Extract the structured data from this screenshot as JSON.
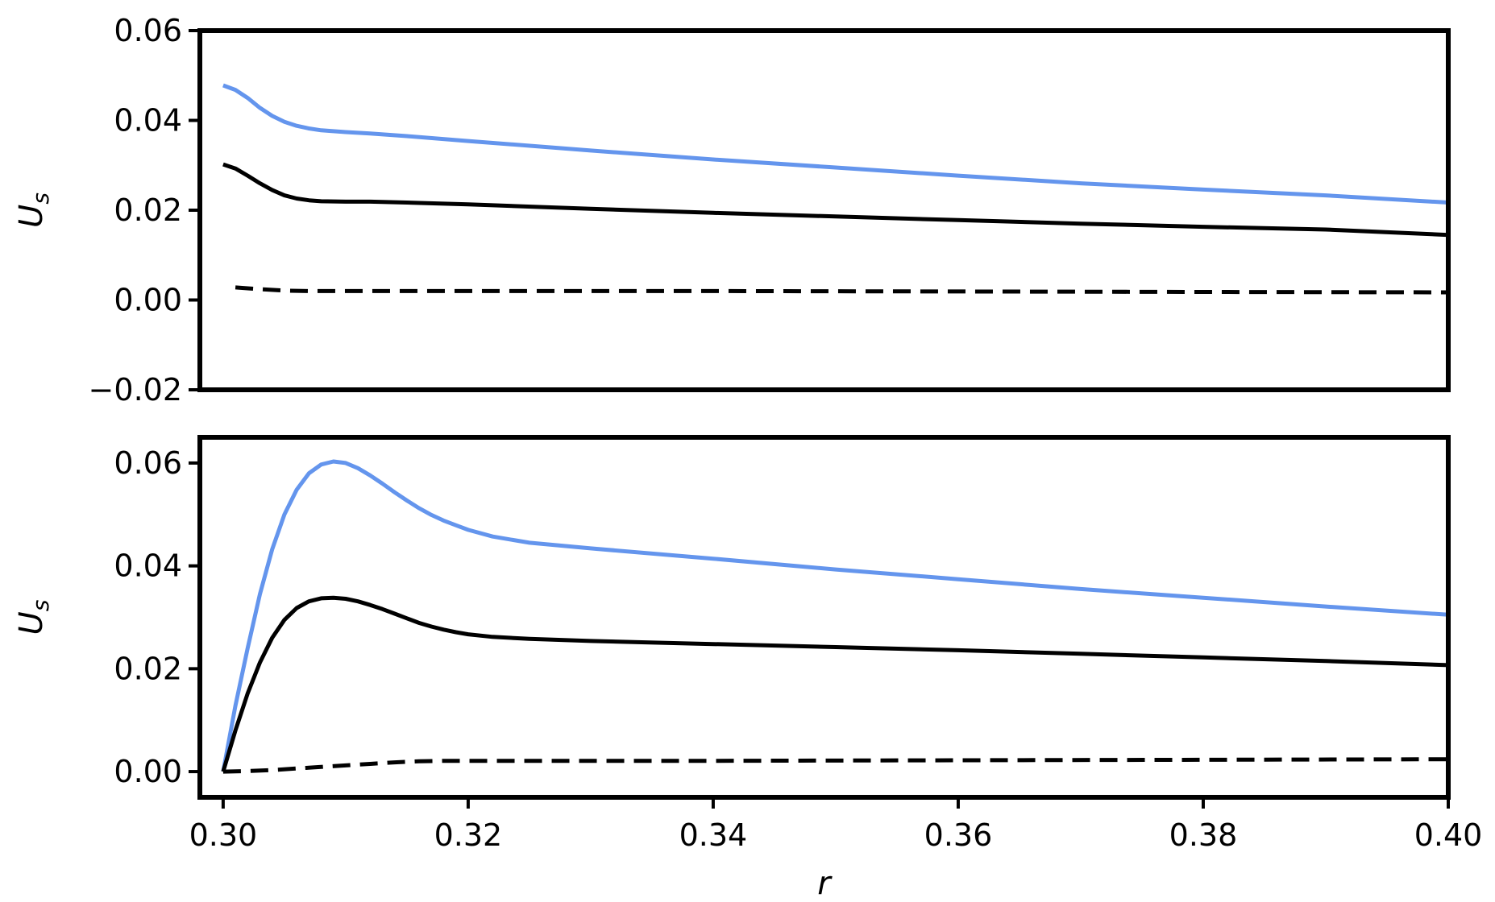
{
  "chart_data": [
    {
      "type": "line",
      "panel": "top",
      "title": "",
      "xlabel": "",
      "ylabel": "U",
      "ylabel_sub": "s",
      "xlim": [
        0.2981,
        0.4
      ],
      "ylim": [
        -0.02,
        0.06
      ],
      "yticks": [
        -0.02,
        0.0,
        0.02,
        0.04,
        0.06
      ],
      "ytick_labels": [
        "−0.02",
        "0.00",
        "0.02",
        "0.04",
        "0.06"
      ],
      "grid": false,
      "series": [
        {
          "color": "#6495ED",
          "dash": "solid",
          "x": [
            0.3,
            0.301,
            0.302,
            0.303,
            0.304,
            0.305,
            0.306,
            0.307,
            0.308,
            0.31,
            0.312,
            0.315,
            0.32,
            0.33,
            0.34,
            0.35,
            0.36,
            0.37,
            0.38,
            0.39,
            0.4
          ],
          "y": [
            0.0478,
            0.0468,
            0.045,
            0.0428,
            0.041,
            0.0397,
            0.0388,
            0.0382,
            0.0378,
            0.0374,
            0.0371,
            0.0365,
            0.0354,
            0.0333,
            0.0313,
            0.0295,
            0.0277,
            0.026,
            0.0246,
            0.0233,
            0.0217
          ]
        },
        {
          "color": "#000000",
          "dash": "solid",
          "x": [
            0.3,
            0.301,
            0.302,
            0.303,
            0.304,
            0.305,
            0.306,
            0.307,
            0.308,
            0.31,
            0.312,
            0.315,
            0.32,
            0.33,
            0.34,
            0.35,
            0.36,
            0.37,
            0.38,
            0.39,
            0.4
          ],
          "y": [
            0.0302,
            0.0293,
            0.0277,
            0.026,
            0.0245,
            0.0233,
            0.0226,
            0.0222,
            0.022,
            0.0219,
            0.0219,
            0.0217,
            0.0213,
            0.0203,
            0.0194,
            0.0186,
            0.0178,
            0.017,
            0.0163,
            0.0157,
            0.0145
          ]
        },
        {
          "color": "#000000",
          "dash": "dashed",
          "x": [
            0.301,
            0.303,
            0.305,
            0.307,
            0.31,
            0.32,
            0.34,
            0.36,
            0.38,
            0.4
          ],
          "y": [
            0.0028,
            0.0024,
            0.0021,
            0.002,
            0.002,
            0.002,
            0.002,
            0.0019,
            0.0018,
            0.0017
          ]
        }
      ]
    },
    {
      "type": "line",
      "panel": "bottom",
      "title": "",
      "xlabel": "r",
      "ylabel": "U",
      "ylabel_sub": "s",
      "xlim": [
        0.2981,
        0.4
      ],
      "ylim": [
        -0.005,
        0.065
      ],
      "xticks": [
        0.3,
        0.32,
        0.34,
        0.36,
        0.38,
        0.4
      ],
      "xtick_labels": [
        "0.30",
        "0.32",
        "0.34",
        "0.36",
        "0.38",
        "0.40"
      ],
      "yticks": [
        0.0,
        0.02,
        0.04,
        0.06
      ],
      "ytick_labels": [
        "0.00",
        "0.02",
        "0.04",
        "0.06"
      ],
      "grid": false,
      "series": [
        {
          "color": "#6495ED",
          "dash": "solid",
          "x": [
            0.3,
            0.301,
            0.302,
            0.303,
            0.304,
            0.305,
            0.306,
            0.307,
            0.308,
            0.309,
            0.31,
            0.311,
            0.312,
            0.313,
            0.314,
            0.315,
            0.316,
            0.317,
            0.318,
            0.319,
            0.32,
            0.322,
            0.325,
            0.33,
            0.34,
            0.35,
            0.36,
            0.37,
            0.38,
            0.39,
            0.4
          ],
          "y": [
            0.0,
            0.0128,
            0.024,
            0.0345,
            0.0432,
            0.05,
            0.0548,
            0.058,
            0.0597,
            0.0603,
            0.06,
            0.059,
            0.0576,
            0.056,
            0.0543,
            0.0527,
            0.0512,
            0.0499,
            0.0488,
            0.0479,
            0.047,
            0.0457,
            0.0445,
            0.0434,
            0.0414,
            0.0393,
            0.0374,
            0.0355,
            0.0338,
            0.0321,
            0.0305
          ]
        },
        {
          "color": "#000000",
          "dash": "solid",
          "x": [
            0.3,
            0.301,
            0.302,
            0.303,
            0.304,
            0.305,
            0.306,
            0.307,
            0.308,
            0.309,
            0.31,
            0.311,
            0.312,
            0.313,
            0.314,
            0.315,
            0.316,
            0.317,
            0.318,
            0.319,
            0.32,
            0.322,
            0.325,
            0.33,
            0.34,
            0.35,
            0.36,
            0.37,
            0.38,
            0.39,
            0.4
          ],
          "y": [
            0.0,
            0.008,
            0.0152,
            0.0212,
            0.026,
            0.0295,
            0.0318,
            0.0331,
            0.0337,
            0.0338,
            0.0336,
            0.0331,
            0.0324,
            0.0316,
            0.0307,
            0.0298,
            0.0289,
            0.0282,
            0.0276,
            0.0271,
            0.0267,
            0.0262,
            0.0258,
            0.0254,
            0.0248,
            0.0242,
            0.0236,
            0.0229,
            0.0222,
            0.0215,
            0.0207
          ]
        },
        {
          "color": "#000000",
          "dash": "dashed",
          "x": [
            0.3,
            0.302,
            0.304,
            0.306,
            0.308,
            0.31,
            0.312,
            0.314,
            0.316,
            0.318,
            0.32,
            0.33,
            0.34,
            0.36,
            0.38,
            0.4
          ],
          "y": [
            0.0,
            0.0001,
            0.0003,
            0.0006,
            0.0009,
            0.0012,
            0.0015,
            0.0018,
            0.002,
            0.0021,
            0.0021,
            0.0021,
            0.0021,
            0.0022,
            0.0023,
            0.0024
          ]
        }
      ]
    }
  ]
}
